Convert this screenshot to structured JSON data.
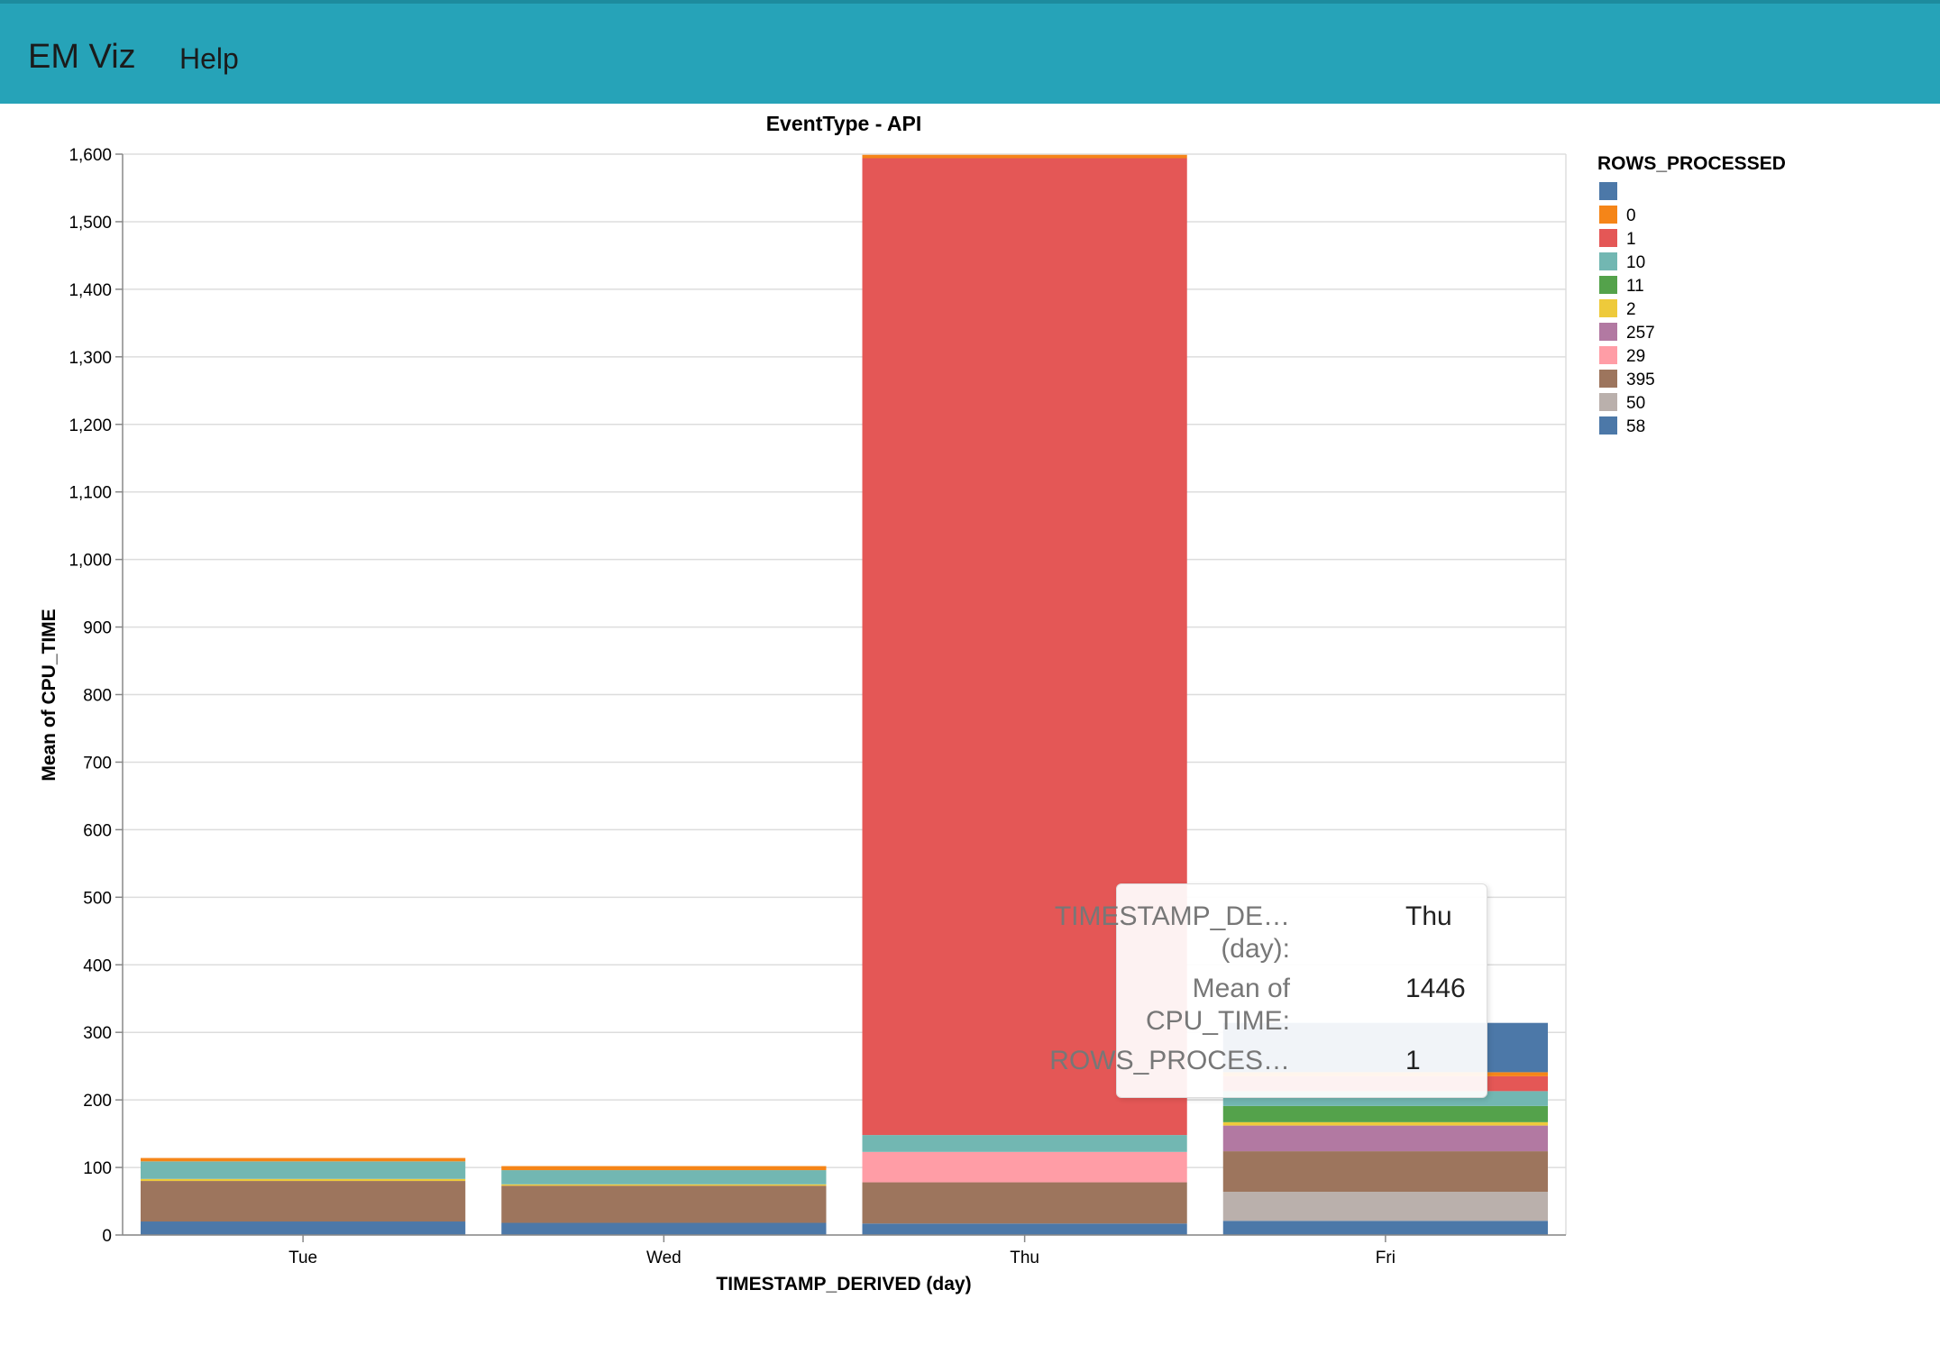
{
  "app": {
    "brand": "EM Viz",
    "nav_help": "Help"
  },
  "chart_data": {
    "type": "bar",
    "stacked": true,
    "title": "EventType - API",
    "xlabel": "TIMESTAMP_DERIVED (day)",
    "ylabel": "Mean of CPU_TIME",
    "ylim": [
      0,
      1600
    ],
    "yticks": [
      0,
      100,
      200,
      300,
      400,
      500,
      600,
      700,
      800,
      900,
      1000,
      1100,
      1200,
      1300,
      1400,
      1500,
      1600
    ],
    "ytick_labels": [
      "0",
      "100",
      "200",
      "300",
      "400",
      "500",
      "600",
      "700",
      "800",
      "900",
      "1,000",
      "1,100",
      "1,200",
      "1,300",
      "1,400",
      "1,500",
      "1,600"
    ],
    "grid": true,
    "categories": [
      "Tue",
      "Wed",
      "Thu",
      "Fri"
    ],
    "legend": {
      "title": "ROWS_PROCESSED",
      "position": "right",
      "entries": [
        {
          "label": "",
          "color": "#4c78a8"
        },
        {
          "label": "0",
          "color": "#f58518"
        },
        {
          "label": "1",
          "color": "#e45756"
        },
        {
          "label": "10",
          "color": "#72b7b2"
        },
        {
          "label": "11",
          "color": "#54a24b"
        },
        {
          "label": "2",
          "color": "#eeca3b"
        },
        {
          "label": "257",
          "color": "#b279a2"
        },
        {
          "label": "29",
          "color": "#ff9da6"
        },
        {
          "label": "395",
          "color": "#9d755d"
        },
        {
          "label": "50",
          "color": "#bab0ac"
        },
        {
          "label": "58",
          "color": "#4c78a8"
        }
      ]
    },
    "stacks": [
      {
        "category": "Tue",
        "segments": [
          {
            "key": "",
            "value": 20
          },
          {
            "key": "395",
            "value": 60
          },
          {
            "key": "2",
            "value": 3
          },
          {
            "key": "10",
            "value": 26
          },
          {
            "key": "0",
            "value": 5
          }
        ]
      },
      {
        "category": "Wed",
        "segments": [
          {
            "key": "",
            "value": 18
          },
          {
            "key": "395",
            "value": 55
          },
          {
            "key": "2",
            "value": 2
          },
          {
            "key": "10",
            "value": 21
          },
          {
            "key": "0",
            "value": 6
          }
        ]
      },
      {
        "category": "Thu",
        "segments": [
          {
            "key": "",
            "value": 17
          },
          {
            "key": "395",
            "value": 61
          },
          {
            "key": "29",
            "value": 45
          },
          {
            "key": "10",
            "value": 25
          },
          {
            "key": "1",
            "value": 1446
          },
          {
            "key": "0",
            "value": 5
          }
        ]
      },
      {
        "category": "Fri",
        "segments": [
          {
            "key": "",
            "value": 21
          },
          {
            "key": "50",
            "value": 43
          },
          {
            "key": "395",
            "value": 60
          },
          {
            "key": "257",
            "value": 38
          },
          {
            "key": "2",
            "value": 5
          },
          {
            "key": "11",
            "value": 24
          },
          {
            "key": "10",
            "value": 22
          },
          {
            "key": "1",
            "value": 22
          },
          {
            "key": "0",
            "value": 6
          },
          {
            "key": "58",
            "value": 73
          }
        ]
      }
    ]
  },
  "tooltip": {
    "rows": [
      {
        "key": "TIMESTAMP_DE…",
        "key2": "(day):",
        "value": "Thu"
      },
      {
        "key": "Mean of",
        "key2": "CPU_TIME:",
        "value": "1446"
      },
      {
        "key": "ROWS_PROCES…",
        "key2": "",
        "value": "1"
      }
    ]
  }
}
